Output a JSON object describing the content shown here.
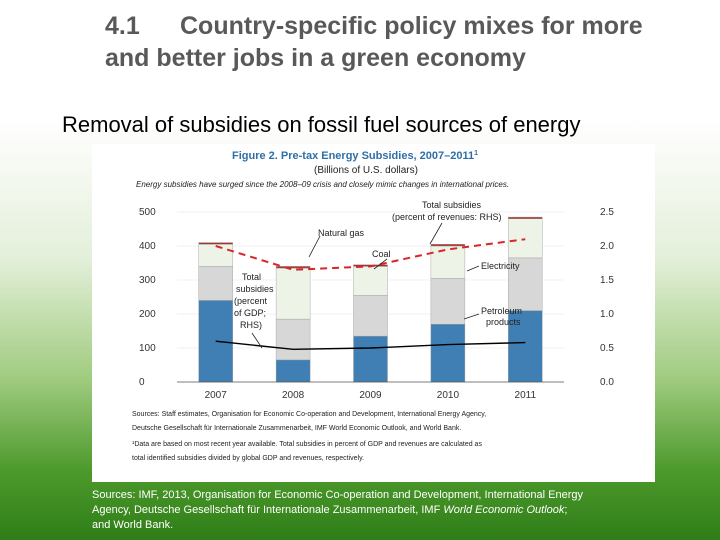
{
  "slide": {
    "number": "4.1",
    "title_line1": "Country-specific policy mixes for more",
    "title_line2": "and better jobs in a green economy",
    "subtitle": "Removal of subsidies on fossil fuel sources of energy"
  },
  "chart_data": {
    "type": "bar",
    "stacked": true,
    "title": "Figure 2. Pre-tax Energy Subsidies, 2007–2011",
    "title_superscript": "1",
    "subtitle": "(Billions of U.S. dollars)",
    "caption": "Energy subsidies have surged since the 2008–09 crisis and closely mimic changes in international prices.",
    "categories": [
      "2007",
      "2008",
      "2009",
      "2010",
      "2011"
    ],
    "ylim": [
      0,
      500
    ],
    "yticks": [
      "0",
      "100",
      "200",
      "300",
      "400",
      "500"
    ],
    "y2lim": [
      0,
      2.5
    ],
    "y2ticks": [
      "0.0",
      "0.5",
      "1.0",
      "1.5",
      "2.0",
      "2.5"
    ],
    "series": [
      {
        "name": "Petroleum products",
        "color": "#3f7fb3",
        "values": [
          240,
          65,
          135,
          170,
          210
        ]
      },
      {
        "name": "Electricity",
        "color": "#d7d7d7",
        "values": [
          100,
          120,
          120,
          135,
          155
        ]
      },
      {
        "name": "Natural gas",
        "color": "#eef3e8",
        "values": [
          65,
          150,
          85,
          95,
          115
        ]
      },
      {
        "name": "Coal",
        "color": "#a8322b",
        "values": [
          5,
          5,
          5,
          5,
          5
        ]
      }
    ],
    "lines": [
      {
        "name": "Total subsidies (percent of GDP; RHS)",
        "axis": "right",
        "color": "#000000",
        "style": "solid",
        "values": [
          0.6,
          0.48,
          0.5,
          0.55,
          0.58
        ]
      },
      {
        "name": "Total subsidies (percent of revenues: RHS)",
        "axis": "right",
        "color": "#d9262a",
        "style": "dashed",
        "values": [
          2.0,
          1.65,
          1.7,
          1.95,
          2.1
        ]
      }
    ],
    "annotations": {
      "natural_gas": "Natural gas",
      "coal": "Coal",
      "electricity": "Electricity",
      "petroleum_line1": "Petroleum",
      "petroleum_line2": "products",
      "total_rev_line1": "Total subsidies",
      "total_rev_line2": "(percent of revenues: RHS)",
      "total_gdp_line1": "Total",
      "total_gdp_line2": "subsidies",
      "total_gdp_line3": "(percent",
      "total_gdp_line4": "of GDP;",
      "total_gdp_line5": "RHS)"
    },
    "footnotes": {
      "line1": "Sources: Staff estimates, Organisation for Economic Co-operation and Development, International Energy Agency,",
      "line2": "Deutsche Gesellschaft für Internationale Zusammenarbeit, IMF World Economic Outlook, and World Bank.",
      "line3": "¹Data are based on most recent year available. Total subsidies in percent of GDP and revenues are calculated as",
      "line4": "total identified subsidies divided by global GDP and revenues, respectively."
    }
  },
  "source": {
    "line1": "Sources: IMF, 2013, Organisation for Economic Co-operation and Development, International Energy",
    "line2_pre": "Agency, Deutsche Gesellschaft für Internationale Zusammenarbeit, IMF ",
    "line2_italic": "World Economic Outlook",
    "line2_post": ";",
    "line3": "and World Bank."
  }
}
